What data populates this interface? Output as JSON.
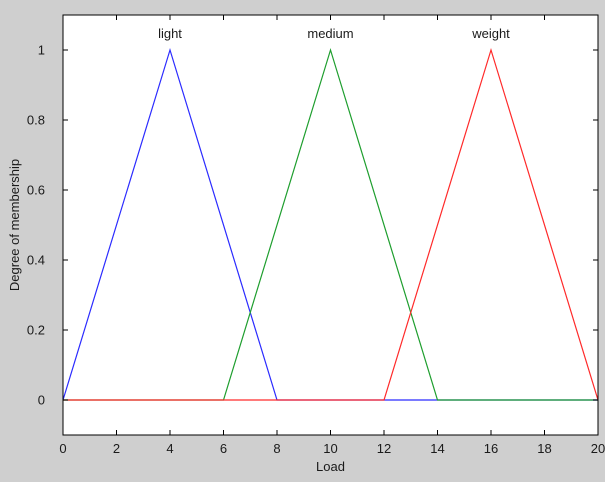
{
  "chart_data": {
    "type": "line",
    "title": "",
    "xlabel": "Load",
    "ylabel": "Degree of membership",
    "xlim": [
      0,
      20
    ],
    "ylim": [
      -0.1,
      1.1
    ],
    "xticks": [
      0,
      2,
      4,
      6,
      8,
      10,
      12,
      14,
      16,
      18,
      20
    ],
    "yticks": [
      0,
      0.2,
      0.4,
      0.6,
      0.8,
      1
    ],
    "grid": false,
    "series": [
      {
        "name": "light",
        "color": "#2b2bff",
        "x": [
          0,
          4,
          8,
          20
        ],
        "y": [
          0,
          1,
          0,
          0
        ]
      },
      {
        "name": "medium",
        "color": "#1e9e2e",
        "x": [
          0,
          6,
          10,
          14,
          20
        ],
        "y": [
          0,
          0,
          1,
          0,
          0
        ]
      },
      {
        "name": "weight",
        "color": "#ff2a2a",
        "x": [
          0,
          12,
          16,
          20
        ],
        "y": [
          0,
          0,
          1,
          0
        ]
      }
    ]
  }
}
